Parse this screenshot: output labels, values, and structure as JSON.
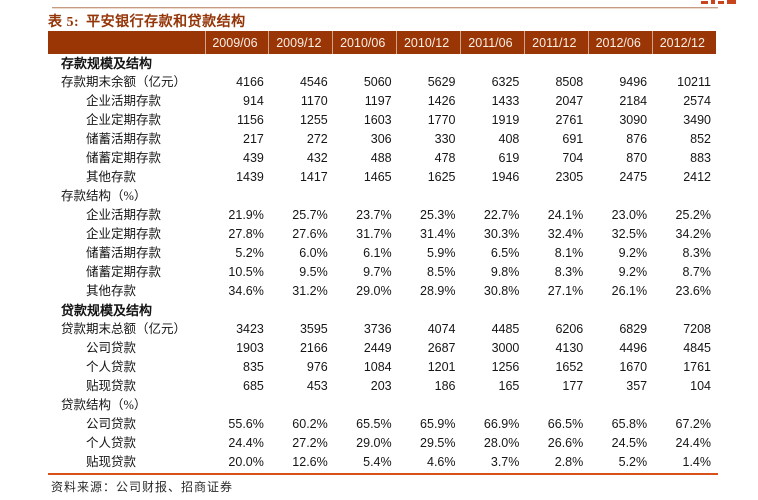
{
  "title": {
    "prefix": "表 5:",
    "name": "平安银行存款和贷款结构"
  },
  "table": {
    "columns": [
      "2009/06",
      "2009/12",
      "2010/06",
      "2010/12",
      "2011/06",
      "2011/12",
      "2012/06",
      "2012/12"
    ],
    "rows": [
      {
        "label": "存款规模及结构",
        "style": "section",
        "indent": 0,
        "values": []
      },
      {
        "label": "存款期末余额（亿元）",
        "style": "row",
        "indent": 0,
        "values": [
          "4166",
          "4546",
          "5060",
          "5629",
          "6325",
          "8508",
          "9496",
          "10211"
        ]
      },
      {
        "label": "企业活期存款",
        "style": "row",
        "indent": 1,
        "values": [
          "914",
          "1170",
          "1197",
          "1426",
          "1433",
          "2047",
          "2184",
          "2574"
        ]
      },
      {
        "label": "企业定期存款",
        "style": "row",
        "indent": 1,
        "values": [
          "1156",
          "1255",
          "1603",
          "1770",
          "1919",
          "2761",
          "3090",
          "3490"
        ]
      },
      {
        "label": "储蓄活期存款",
        "style": "row",
        "indent": 1,
        "values": [
          "217",
          "272",
          "306",
          "330",
          "408",
          "691",
          "876",
          "852"
        ]
      },
      {
        "label": "储蓄定期存款",
        "style": "row",
        "indent": 1,
        "values": [
          "439",
          "432",
          "488",
          "478",
          "619",
          "704",
          "870",
          "883"
        ]
      },
      {
        "label": "其他存款",
        "style": "row",
        "indent": 1,
        "values": [
          "1439",
          "1417",
          "1465",
          "1625",
          "1946",
          "2305",
          "2475",
          "2412"
        ]
      },
      {
        "label": "存款结构（%）",
        "style": "row",
        "indent": 0,
        "values": []
      },
      {
        "label": "企业活期存款",
        "style": "row",
        "indent": 1,
        "values": [
          "21.9%",
          "25.7%",
          "23.7%",
          "25.3%",
          "22.7%",
          "24.1%",
          "23.0%",
          "25.2%"
        ]
      },
      {
        "label": "企业定期存款",
        "style": "row",
        "indent": 1,
        "values": [
          "27.8%",
          "27.6%",
          "31.7%",
          "31.4%",
          "30.3%",
          "32.4%",
          "32.5%",
          "34.2%"
        ]
      },
      {
        "label": "储蓄活期存款",
        "style": "row",
        "indent": 1,
        "values": [
          "5.2%",
          "6.0%",
          "6.1%",
          "5.9%",
          "6.5%",
          "8.1%",
          "9.2%",
          "8.3%"
        ]
      },
      {
        "label": "储蓄定期存款",
        "style": "row",
        "indent": 1,
        "values": [
          "10.5%",
          "9.5%",
          "9.7%",
          "8.5%",
          "9.8%",
          "8.3%",
          "9.2%",
          "8.7%"
        ]
      },
      {
        "label": "其他存款",
        "style": "row",
        "indent": 1,
        "values": [
          "34.6%",
          "31.2%",
          "29.0%",
          "28.9%",
          "30.8%",
          "27.1%",
          "26.1%",
          "23.6%"
        ]
      },
      {
        "label": "贷款规模及结构",
        "style": "section",
        "indent": 0,
        "values": []
      },
      {
        "label": "贷款期末总额（亿元）",
        "style": "row",
        "indent": 0,
        "values": [
          "3423",
          "3595",
          "3736",
          "4074",
          "4485",
          "6206",
          "6829",
          "7208"
        ]
      },
      {
        "label": "公司贷款",
        "style": "row",
        "indent": 1,
        "values": [
          "1903",
          "2166",
          "2449",
          "2687",
          "3000",
          "4130",
          "4496",
          "4845"
        ]
      },
      {
        "label": "个人贷款",
        "style": "row",
        "indent": 1,
        "values": [
          "835",
          "976",
          "1084",
          "1201",
          "1256",
          "1652",
          "1670",
          "1761"
        ]
      },
      {
        "label": "贴现贷款",
        "style": "row",
        "indent": 1,
        "values": [
          "685",
          "453",
          "203",
          "186",
          "165",
          "177",
          "357",
          "104"
        ]
      },
      {
        "label": "贷款结构（%）",
        "style": "row",
        "indent": 0,
        "values": []
      },
      {
        "label": "公司贷款",
        "style": "row",
        "indent": 1,
        "values": [
          "55.6%",
          "60.2%",
          "65.5%",
          "65.9%",
          "66.9%",
          "66.5%",
          "65.8%",
          "67.2%"
        ]
      },
      {
        "label": "个人贷款",
        "style": "row",
        "indent": 1,
        "values": [
          "24.4%",
          "27.2%",
          "29.0%",
          "29.5%",
          "28.0%",
          "26.6%",
          "24.5%",
          "24.4%"
        ]
      },
      {
        "label": "贴现贷款",
        "style": "row",
        "indent": 1,
        "values": [
          "20.0%",
          "12.6%",
          "5.4%",
          "4.6%",
          "3.7%",
          "2.8%",
          "5.2%",
          "1.4%"
        ]
      }
    ]
  },
  "source": "资料来源：公司财报、招商证券",
  "colors": {
    "header_bg": "#9a3506",
    "title_text": "#943508",
    "top_rule": "#c79a82",
    "bottom_rule": "#d9511a",
    "logo_fragment": "#c8441c"
  }
}
